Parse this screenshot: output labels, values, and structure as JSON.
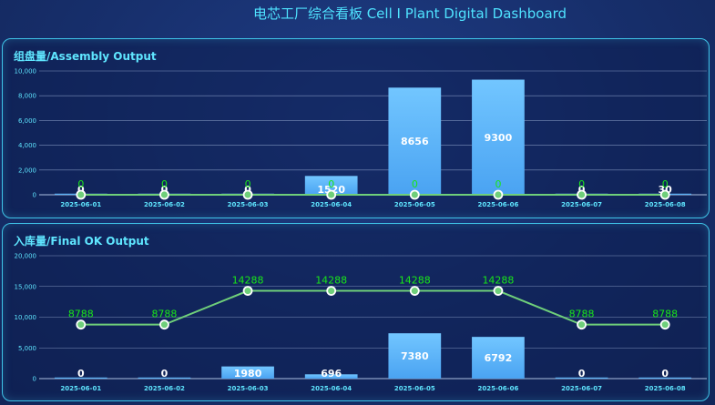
{
  "dashboard": {
    "title": "电芯工厂综合看板 Cell I Plant Digital Dashboard"
  },
  "chart_data": [
    {
      "type": "bar",
      "title": "组盘量/Assembly Output",
      "categories": [
        "2025-06-01",
        "2025-06-02",
        "2025-06-03",
        "2025-06-04",
        "2025-06-05",
        "2025-06-06",
        "2025-06-07",
        "2025-06-08"
      ],
      "series": [
        {
          "type": "bar",
          "values": [
            0,
            0,
            0,
            1520,
            8656,
            9300,
            0,
            30
          ]
        },
        {
          "type": "line",
          "values": [
            0,
            0,
            0,
            0,
            0,
            0,
            0,
            0
          ]
        }
      ],
      "yticks": [
        "0",
        "2,000",
        "4,000",
        "6,000",
        "8,000",
        "10,000"
      ],
      "ylim": [
        0,
        10000
      ],
      "grid": true,
      "colors": {
        "bar_top": "#72c6ff",
        "bar_bottom": "#4aa3f2",
        "line": "#6fcf7a",
        "line_label": "#19e619",
        "bar_label": "#ffffff"
      }
    },
    {
      "type": "bar",
      "title": "入库量/Final OK Output",
      "categories": [
        "2025-06-01",
        "2025-06-02",
        "2025-06-03",
        "2025-06-04",
        "2025-06-05",
        "2025-06-06",
        "2025-06-07",
        "2025-06-08"
      ],
      "series": [
        {
          "type": "bar",
          "values": [
            0,
            0,
            1980,
            696,
            7380,
            6792,
            0,
            0
          ]
        },
        {
          "type": "line",
          "values": [
            8788,
            8788,
            14288,
            14288,
            14288,
            14288,
            8788,
            8788
          ]
        }
      ],
      "yticks": [
        "0",
        "5,000",
        "10,000",
        "15,000",
        "20,000"
      ],
      "ylim": [
        0,
        20000
      ],
      "grid": true,
      "colors": {
        "bar_top": "#72c6ff",
        "bar_bottom": "#4aa3f2",
        "line": "#6fcf7a",
        "line_label": "#19e619",
        "bar_label": "#ffffff"
      }
    }
  ]
}
